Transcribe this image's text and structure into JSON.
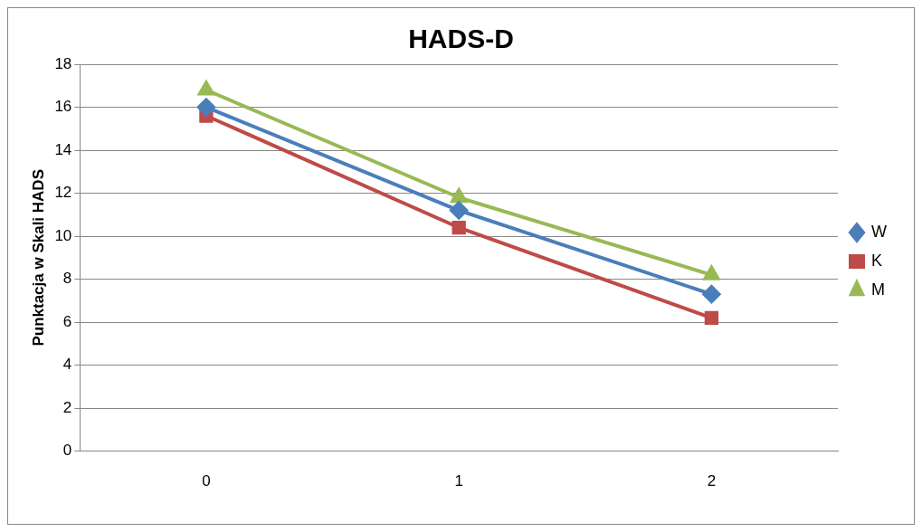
{
  "chart_data": {
    "type": "line",
    "title": "HADS-D",
    "ylabel": "Punktacja w Skali HADS",
    "categories": [
      "0",
      "1",
      "2"
    ],
    "series": [
      {
        "name": "W",
        "color": "#4a7ebb",
        "marker": "diamond",
        "values": [
          16.0,
          11.2,
          7.3
        ]
      },
      {
        "name": "K",
        "color": "#be4b48",
        "marker": "square",
        "values": [
          15.6,
          10.4,
          6.2
        ]
      },
      {
        "name": "M",
        "color": "#98b954",
        "marker": "triangle",
        "values": [
          16.8,
          11.8,
          8.2
        ]
      }
    ],
    "ylim": [
      0,
      18
    ],
    "yticks": [
      0,
      2,
      4,
      6,
      8,
      10,
      12,
      14,
      16,
      18
    ],
    "grid": "y",
    "legend": "right"
  }
}
